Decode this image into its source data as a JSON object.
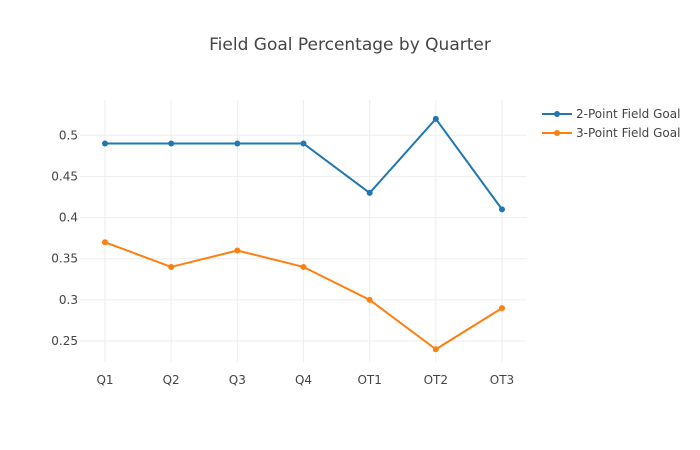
{
  "chart_data": {
    "type": "line",
    "title": "Field Goal Percentage by Quarter",
    "xlabel": "",
    "ylabel": "",
    "categories": [
      "Q1",
      "Q2",
      "Q3",
      "Q4",
      "OT1",
      "OT2",
      "OT3"
    ],
    "series": [
      {
        "name": "2-Point Field Goal",
        "color": "#1f77b4",
        "values": [
          0.49,
          0.49,
          0.49,
          0.49,
          0.43,
          0.52,
          0.41
        ]
      },
      {
        "name": "3-Point Field Goal",
        "color": "#ff7f0e",
        "values": [
          0.37,
          0.34,
          0.36,
          0.34,
          0.3,
          0.24,
          0.29
        ]
      }
    ],
    "ylim": [
      0.2245,
      0.5429
    ],
    "yticks": [
      0.25,
      0.3,
      0.35,
      0.4,
      0.45,
      0.5
    ],
    "ytick_labels": [
      "0.25",
      "0.3",
      "0.35",
      "0.4",
      "0.45",
      "0.5"
    ],
    "grid": true,
    "legend_position": "top-right"
  }
}
